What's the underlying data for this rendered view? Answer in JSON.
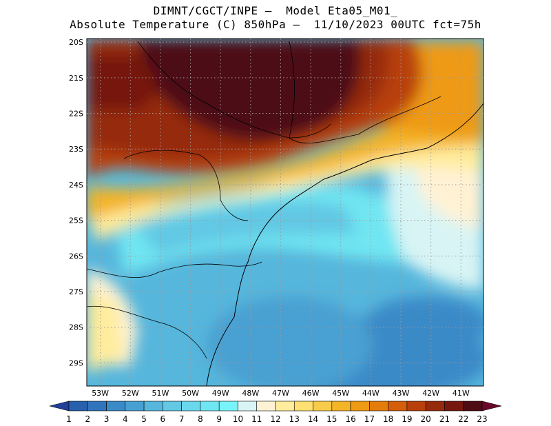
{
  "title": {
    "line1": "DIMNT/CGCT/INPE –  Model Eta05_M01_",
    "line2": "Absolute Temperature (C) 850hPa –  11/10/2023 00UTC fct=75h"
  },
  "map": {
    "lat_labels": [
      "20S",
      "21S",
      "22S",
      "23S",
      "24S",
      "25S",
      "26S",
      "27S",
      "28S",
      "29S"
    ],
    "lon_labels": [
      "53W",
      "52W",
      "51W",
      "50W",
      "49W",
      "48W",
      "47W",
      "46W",
      "45W",
      "44W",
      "43W",
      "42W",
      "41W"
    ],
    "lat_range": [
      19.9,
      29.65
    ],
    "lon_range": [
      53.45,
      40.25
    ],
    "grid": "dotted gray",
    "temperature_field": {
      "units": "C",
      "description_regions": [
        {
          "area": "northern interior",
          "range": "21-23"
        },
        {
          "area": "southeastern coast",
          "range": "12-17"
        },
        {
          "area": "southern and offshore",
          "range": "4-9"
        }
      ]
    }
  },
  "colorbar": {
    "labels": [
      "1",
      "2",
      "3",
      "4",
      "5",
      "6",
      "7",
      "8",
      "9",
      "10",
      "11",
      "12",
      "13",
      "14",
      "15",
      "16",
      "17",
      "18",
      "19",
      "20",
      "21",
      "22",
      "23"
    ],
    "colors": [
      "#20409a",
      "#2860ac",
      "#3074bc",
      "#3a8ac8",
      "#48a0d2",
      "#56b6dc",
      "#62c8e4",
      "#6ad8ec",
      "#70e6f2",
      "#78f4f8",
      "#d8f4f4",
      "#fff2d4",
      "#ffec9c",
      "#ffe070",
      "#f8cc4a",
      "#f4b428",
      "#ee9a14",
      "#e47c0c",
      "#d45e0a",
      "#b8400a",
      "#962a0c",
      "#761810",
      "#4e0c14",
      "#6a0828"
    ]
  }
}
